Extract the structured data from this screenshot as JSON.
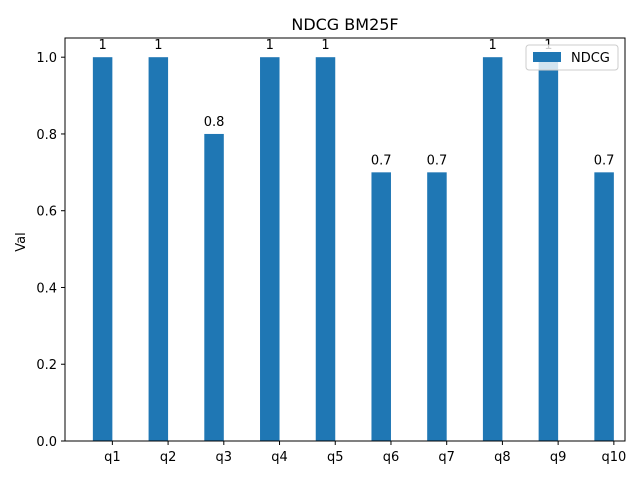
{
  "chart_data": {
    "type": "bar",
    "title": "NDCG BM25F",
    "xlabel": "",
    "ylabel": "Val",
    "categories": [
      "q1",
      "q2",
      "q3",
      "q4",
      "q5",
      "q6",
      "q7",
      "q8",
      "q9",
      "q10"
    ],
    "series": [
      {
        "name": "NDCG",
        "values": [
          1,
          1,
          0.8,
          1,
          1,
          0.7,
          0.7,
          1,
          1,
          0.7
        ],
        "labels": [
          "1",
          "1",
          "0.8",
          "1",
          "1",
          "0.7",
          "0.7",
          "1",
          "1",
          "0.7"
        ],
        "color": "#1f77b4"
      }
    ],
    "ylim": [
      0,
      1.05
    ],
    "yticks": [
      "0.0",
      "0.2",
      "0.4",
      "0.6",
      "0.8",
      "1.0"
    ],
    "grid": false,
    "legend_position": "top-right"
  }
}
